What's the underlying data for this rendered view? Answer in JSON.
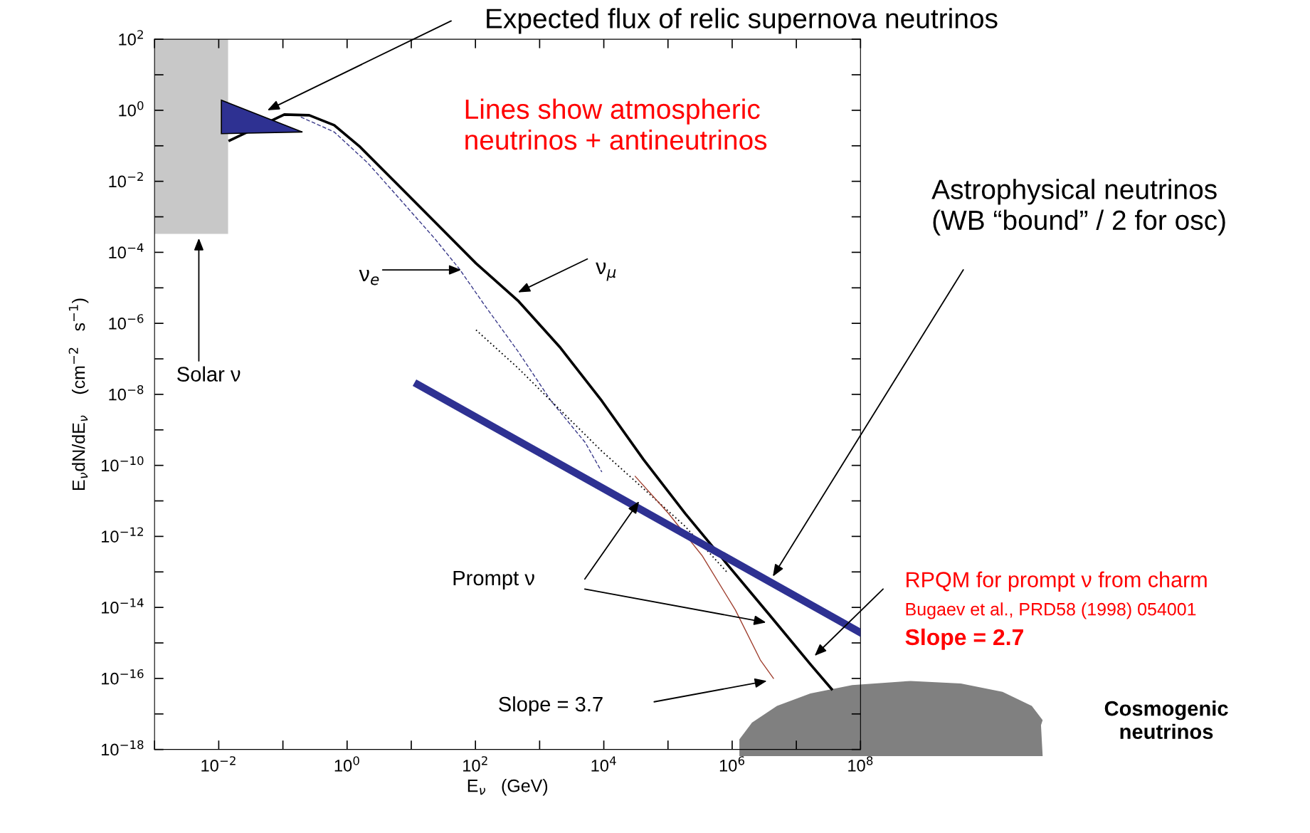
{
  "chart_data": {
    "type": "line",
    "xlabel": "E$_{ν}$   (GeV)",
    "ylabel": "E$_{ν}$dN/dE$_{ν}$    (cm$^{−2}$   s$^{−1}$)",
    "log": "xy",
    "xlim": [
      0.001,
      100000000
    ],
    "ylim": [
      1e-18,
      100
    ],
    "xticks": [
      {
        "value": 0.001,
        "label": null
      },
      {
        "value": 0.01,
        "label": "10$^{−2}$"
      },
      {
        "value": 0.1,
        "label": null
      },
      {
        "value": 1,
        "label": "10$^{0}$"
      },
      {
        "value": 10,
        "label": null
      },
      {
        "value": 100,
        "label": "10$^{2}$"
      },
      {
        "value": 1000,
        "label": null
      },
      {
        "value": 10000,
        "label": "10$^{4}$"
      },
      {
        "value": 100000,
        "label": null
      },
      {
        "value": 1000000,
        "label": "10$^{6}$"
      },
      {
        "value": 10000000,
        "label": null
      },
      {
        "value": 100000000,
        "label": "10$^{8}$"
      }
    ],
    "yticks": [
      {
        "value": 100,
        "label": "10$^{2}$"
      },
      {
        "value": 10,
        "label": null
      },
      {
        "value": 1,
        "label": "10$^{0}$"
      },
      {
        "value": 0.1,
        "label": null
      },
      {
        "value": 0.01,
        "label": "10$^{−2}$"
      },
      {
        "value": 0.001,
        "label": null
      },
      {
        "value": 0.0001,
        "label": "10$^{−4}$"
      },
      {
        "value": 1e-05,
        "label": null
      },
      {
        "value": 1e-06,
        "label": "10$^{−6}$"
      },
      {
        "value": 1e-07,
        "label": null
      },
      {
        "value": 1e-08,
        "label": "10$^{−8}$"
      },
      {
        "value": 1e-09,
        "label": null
      },
      {
        "value": 1e-10,
        "label": "10$^{−10}$"
      },
      {
        "value": 1e-11,
        "label": null
      },
      {
        "value": 1e-12,
        "label": "10$^{−12}$"
      },
      {
        "value": 1e-13,
        "label": null
      },
      {
        "value": 1e-14,
        "label": "10$^{−14}$"
      },
      {
        "value": 1e-15,
        "label": null
      },
      {
        "value": 1e-16,
        "label": "10$^{−16}$"
      },
      {
        "value": 1e-17,
        "label": null
      },
      {
        "value": 1e-18,
        "label": "10$^{−18}$"
      }
    ],
    "grid": false,
    "series": [
      {
        "color": "#000000",
        "line_style": "solid",
        "x": [
          0.0148,
          0.105,
          0.257,
          0.631,
          1.55,
          5.13,
          22.9,
          102,
          457,
          2040,
          9330,
          41700,
          186000,
          832000,
          3720000,
          16600000,
          35500000
        ],
        "values": [
          0.141,
          0.759,
          0.724,
          0.38,
          0.0977,
          0.0112,
          0.00074,
          4.9e-05,
          4.4e-06,
          2.2e-07,
          6.5e-09,
          1.45e-10,
          4.4e-12,
          1.66e-13,
          6.5e-15,
          2.5e-16,
          5e-17
        ]
      },
      {
        "color": "#3a3a8a",
        "line_style": "dashed",
        "x": [
          0.19,
          0.63,
          2.09,
          6.92,
          22.9,
          56.2,
          138,
          457,
          1510,
          5130,
          9330
        ],
        "values": [
          0.646,
          0.245,
          0.0331,
          0.0029,
          0.00025,
          3.4e-05,
          3.3e-06,
          1.66e-07,
          6.5e-09,
          4.4e-10,
          6.5e-11
        ]
      },
      {
        "color": "#000000",
        "line_style": "dotted",
        "x": [
          102,
          457,
          2040,
          9330,
          41700,
          186000,
          832000
        ],
        "values": [
          6.5e-07,
          5.6e-08,
          3.8e-09,
          2.5e-10,
          2.2e-11,
          1.9e-12,
          9.8e-14
        ]
      },
      {
        "color": "#a04030",
        "line_style": "solid",
        "x": [
          30900,
          102000,
          339000,
          1120000,
          2750000,
          4400000
        ],
        "values": [
          4.9e-11,
          4.4e-12,
          2.9e-13,
          8.5e-15,
          3.3e-16,
          1e-16
        ]
      },
      {
        "color": "#2e3192",
        "line_style": "solid",
        "x": [
          12.6,
          100000000
        ],
        "values": [
          1.9e-08,
          1.95e-15
        ]
      }
    ],
    "annotations": [
      "Expected flux of relic supernova neutrinos",
      "Lines show atmospheric\nneutrinos + antineutrinos",
      "Astrophysical neutrinos\n(WB “bound” / 2 for osc)",
      "ν$_{e}$",
      "ν$_{μ}$",
      "Solar ν",
      "Prompt ν",
      "RPQM for prompt ν from charm",
      "Bugaev et al., PRD58 (1998) 054001",
      "Slope = 2.7",
      "Slope = 3.7",
      "Cosmogenic\nneutrinos"
    ]
  }
}
